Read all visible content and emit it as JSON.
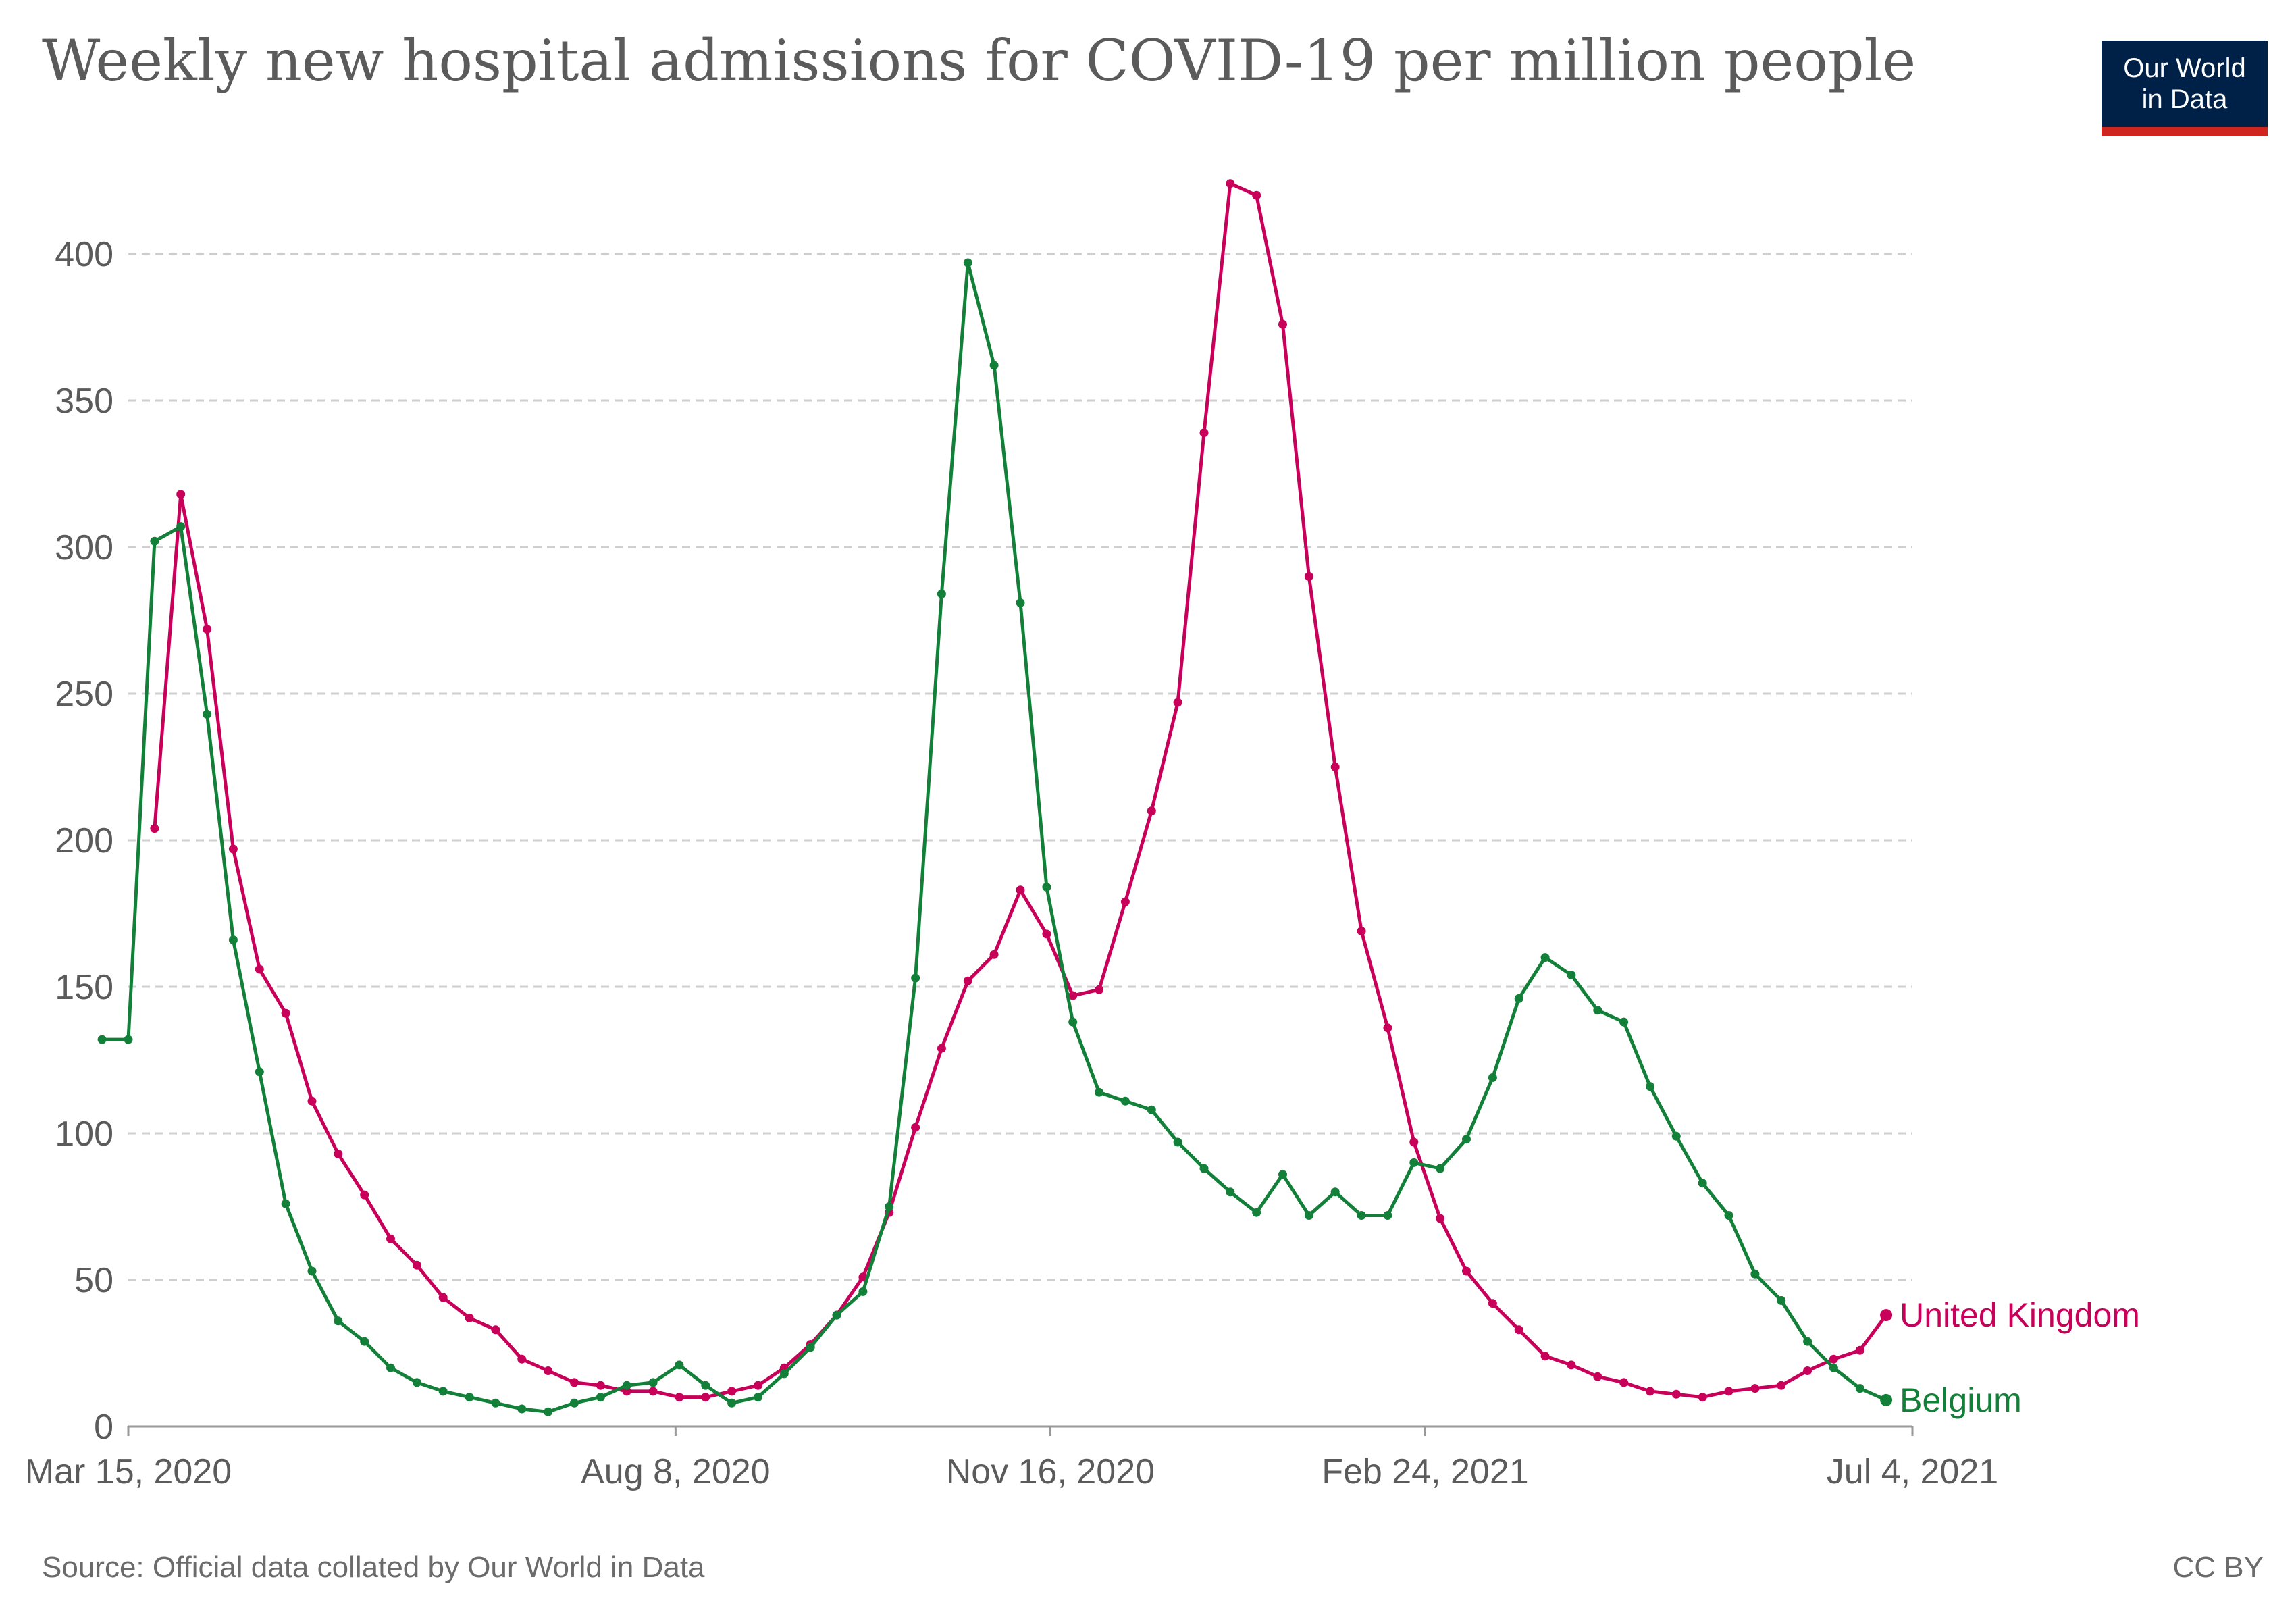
{
  "header": {
    "title": "Weekly new hospital admissions for COVID-19 per million people",
    "logo_line1": "Our World",
    "logo_line2": "in Data"
  },
  "footer": {
    "source": "Source: Official data collated by Our World in Data",
    "license": "CC BY"
  },
  "colors": {
    "uk": "#c8005a",
    "belgium": "#138039",
    "grid": "#cfcfcf",
    "axis_text": "#5b5b5b"
  },
  "chart_data": {
    "type": "line",
    "title": "Weekly new hospital admissions for COVID-19 per million people",
    "xlabel": "",
    "ylabel": "",
    "ylim": [
      0,
      425
    ],
    "xlim": [
      "2020-03-15",
      "2021-07-04"
    ],
    "yticks": [
      0,
      50,
      100,
      150,
      200,
      250,
      300,
      350,
      400
    ],
    "xtick_labels": [
      {
        "date": "2020-03-15",
        "label": "Mar 15, 2020"
      },
      {
        "date": "2020-08-08",
        "label": "Aug 8, 2020"
      },
      {
        "date": "2020-11-16",
        "label": "Nov 16, 2020"
      },
      {
        "date": "2021-02-24",
        "label": "Feb 24, 2021"
      },
      {
        "date": "2021-07-04",
        "label": "Jul 4, 2021"
      }
    ],
    "grid": true,
    "legend": "line-end labels",
    "series": [
      {
        "name": "United Kingdom",
        "color": "#c8005a",
        "points": [
          [
            "2020-03-22",
            204
          ],
          [
            "2020-03-29",
            318
          ],
          [
            "2020-04-05",
            272
          ],
          [
            "2020-04-12",
            197
          ],
          [
            "2020-04-19",
            156
          ],
          [
            "2020-04-26",
            141
          ],
          [
            "2020-05-03",
            111
          ],
          [
            "2020-05-10",
            93
          ],
          [
            "2020-05-17",
            79
          ],
          [
            "2020-05-24",
            64
          ],
          [
            "2020-05-31",
            55
          ],
          [
            "2020-06-07",
            44
          ],
          [
            "2020-06-14",
            37
          ],
          [
            "2020-06-21",
            33
          ],
          [
            "2020-06-28",
            23
          ],
          [
            "2020-07-05",
            19
          ],
          [
            "2020-07-12",
            15
          ],
          [
            "2020-07-19",
            14
          ],
          [
            "2020-07-26",
            12
          ],
          [
            "2020-08-02",
            12
          ],
          [
            "2020-08-09",
            10
          ],
          [
            "2020-08-16",
            10
          ],
          [
            "2020-08-23",
            12
          ],
          [
            "2020-08-30",
            14
          ],
          [
            "2020-09-06",
            20
          ],
          [
            "2020-09-13",
            28
          ],
          [
            "2020-09-20",
            38
          ],
          [
            "2020-09-27",
            51
          ],
          [
            "2020-10-04",
            73
          ],
          [
            "2020-10-11",
            102
          ],
          [
            "2020-10-18",
            129
          ],
          [
            "2020-10-25",
            152
          ],
          [
            "2020-11-01",
            161
          ],
          [
            "2020-11-08",
            183
          ],
          [
            "2020-11-15",
            168
          ],
          [
            "2020-11-22",
            147
          ],
          [
            "2020-11-29",
            149
          ],
          [
            "2020-12-06",
            179
          ],
          [
            "2020-12-13",
            210
          ],
          [
            "2020-12-20",
            247
          ],
          [
            "2020-12-27",
            339
          ],
          [
            "2021-01-03",
            424
          ],
          [
            "2021-01-10",
            420
          ],
          [
            "2021-01-17",
            376
          ],
          [
            "2021-01-24",
            290
          ],
          [
            "2021-01-31",
            225
          ],
          [
            "2021-02-07",
            169
          ],
          [
            "2021-02-14",
            136
          ],
          [
            "2021-02-21",
            97
          ],
          [
            "2021-02-28",
            71
          ],
          [
            "2021-03-07",
            53
          ],
          [
            "2021-03-14",
            42
          ],
          [
            "2021-03-21",
            33
          ],
          [
            "2021-03-28",
            24
          ],
          [
            "2021-04-04",
            21
          ],
          [
            "2021-04-11",
            17
          ],
          [
            "2021-04-18",
            15
          ],
          [
            "2021-04-25",
            12
          ],
          [
            "2021-05-02",
            11
          ],
          [
            "2021-05-09",
            10
          ],
          [
            "2021-05-16",
            12
          ],
          [
            "2021-05-23",
            13
          ],
          [
            "2021-05-30",
            14
          ],
          [
            "2021-06-06",
            19
          ],
          [
            "2021-06-13",
            23
          ],
          [
            "2021-06-20",
            26
          ],
          [
            "2021-06-27",
            38
          ]
        ]
      },
      {
        "name": "Belgium",
        "color": "#138039",
        "points": [
          [
            "2020-03-08",
            132
          ],
          [
            "2020-03-15",
            132
          ],
          [
            "2020-03-22",
            302
          ],
          [
            "2020-03-29",
            307
          ],
          [
            "2020-04-05",
            243
          ],
          [
            "2020-04-12",
            166
          ],
          [
            "2020-04-19",
            121
          ],
          [
            "2020-04-26",
            76
          ],
          [
            "2020-05-03",
            53
          ],
          [
            "2020-05-10",
            36
          ],
          [
            "2020-05-17",
            29
          ],
          [
            "2020-05-24",
            20
          ],
          [
            "2020-05-31",
            15
          ],
          [
            "2020-06-07",
            12
          ],
          [
            "2020-06-14",
            10
          ],
          [
            "2020-06-21",
            8
          ],
          [
            "2020-06-28",
            6
          ],
          [
            "2020-07-05",
            5
          ],
          [
            "2020-07-12",
            8
          ],
          [
            "2020-07-19",
            10
          ],
          [
            "2020-07-26",
            14
          ],
          [
            "2020-08-02",
            15
          ],
          [
            "2020-08-09",
            21
          ],
          [
            "2020-08-16",
            14
          ],
          [
            "2020-08-23",
            8
          ],
          [
            "2020-08-30",
            10
          ],
          [
            "2020-09-06",
            18
          ],
          [
            "2020-09-13",
            27
          ],
          [
            "2020-09-20",
            38
          ],
          [
            "2020-09-27",
            46
          ],
          [
            "2020-10-04",
            75
          ],
          [
            "2020-10-11",
            153
          ],
          [
            "2020-10-18",
            284
          ],
          [
            "2020-10-25",
            397
          ],
          [
            "2020-11-01",
            362
          ],
          [
            "2020-11-08",
            281
          ],
          [
            "2020-11-15",
            184
          ],
          [
            "2020-11-22",
            138
          ],
          [
            "2020-11-29",
            114
          ],
          [
            "2020-12-06",
            111
          ],
          [
            "2020-12-13",
            108
          ],
          [
            "2020-12-20",
            97
          ],
          [
            "2020-12-27",
            88
          ],
          [
            "2021-01-03",
            80
          ],
          [
            "2021-01-10",
            73
          ],
          [
            "2021-01-17",
            86
          ],
          [
            "2021-01-24",
            72
          ],
          [
            "2021-01-31",
            80
          ],
          [
            "2021-02-07",
            72
          ],
          [
            "2021-02-14",
            72
          ],
          [
            "2021-02-21",
            90
          ],
          [
            "2021-02-28",
            88
          ],
          [
            "2021-03-07",
            98
          ],
          [
            "2021-03-14",
            119
          ],
          [
            "2021-03-21",
            146
          ],
          [
            "2021-03-28",
            160
          ],
          [
            "2021-04-04",
            154
          ],
          [
            "2021-04-11",
            142
          ],
          [
            "2021-04-18",
            138
          ],
          [
            "2021-04-25",
            116
          ],
          [
            "2021-05-02",
            99
          ],
          [
            "2021-05-09",
            83
          ],
          [
            "2021-05-16",
            72
          ],
          [
            "2021-05-23",
            52
          ],
          [
            "2021-05-30",
            43
          ],
          [
            "2021-06-06",
            29
          ],
          [
            "2021-06-13",
            20
          ],
          [
            "2021-06-20",
            13
          ],
          [
            "2021-06-27",
            9
          ]
        ]
      }
    ]
  }
}
